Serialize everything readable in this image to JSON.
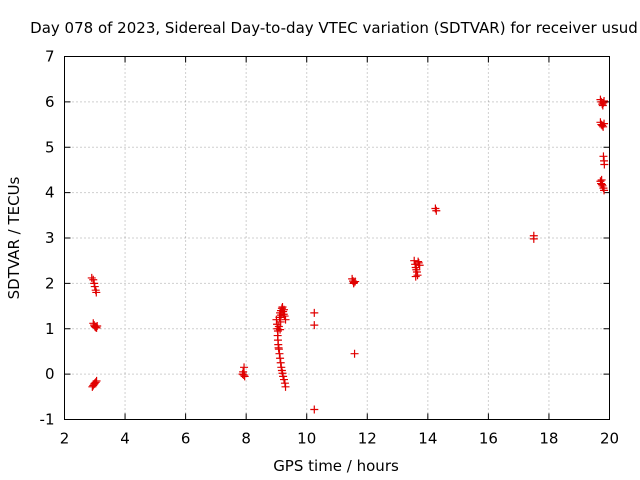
{
  "chart_data": {
    "type": "scatter",
    "title": "Day 078 of 2023, Sidereal Day-to-day VTEC variation (SDTVAR) for receiver usud",
    "xlabel": "GPS time / hours",
    "ylabel": "SDTVAR / TECUs",
    "xlim": [
      2,
      20
    ],
    "ylim": [
      -1,
      7
    ],
    "xticks": [
      2,
      4,
      6,
      8,
      10,
      12,
      14,
      16,
      18,
      20
    ],
    "yticks": [
      -1,
      0,
      1,
      2,
      3,
      4,
      5,
      6,
      7
    ],
    "xtick_labels": [
      "2",
      "4",
      "6",
      "8",
      "10",
      "12",
      "14",
      "16",
      "18",
      "20"
    ],
    "ytick_labels": [
      "-1",
      "0",
      "1",
      "2",
      "3",
      "4",
      "5",
      "6",
      "7"
    ],
    "grid": true,
    "marker": "plus",
    "color": "#e00000",
    "series": [
      {
        "name": "SDTVAR",
        "points": [
          [
            2.9,
            2.12
          ],
          [
            2.95,
            2.08
          ],
          [
            2.98,
            2.0
          ],
          [
            3.0,
            1.93
          ],
          [
            3.03,
            1.85
          ],
          [
            3.05,
            1.8
          ],
          [
            2.95,
            1.12
          ],
          [
            2.98,
            1.08
          ],
          [
            3.0,
            1.05
          ],
          [
            3.03,
            1.03
          ],
          [
            3.06,
            1.02
          ],
          [
            3.08,
            1.06
          ],
          [
            2.92,
            -0.28
          ],
          [
            2.95,
            -0.25
          ],
          [
            2.98,
            -0.22
          ],
          [
            3.0,
            -0.2
          ],
          [
            3.03,
            -0.18
          ],
          [
            3.06,
            -0.15
          ],
          [
            7.88,
            0.0
          ],
          [
            7.92,
            -0.02
          ],
          [
            7.95,
            -0.05
          ],
          [
            7.9,
            0.05
          ],
          [
            7.93,
            0.15
          ],
          [
            9.0,
            1.2
          ],
          [
            9.02,
            1.1
          ],
          [
            9.03,
            1.0
          ],
          [
            9.05,
            0.95
          ],
          [
            9.04,
            0.85
          ],
          [
            9.05,
            0.75
          ],
          [
            9.06,
            0.65
          ],
          [
            9.07,
            0.58
          ],
          [
            9.08,
            0.55
          ],
          [
            9.1,
            0.45
          ],
          [
            9.12,
            0.35
          ],
          [
            9.14,
            0.25
          ],
          [
            9.16,
            0.15
          ],
          [
            9.18,
            0.08
          ],
          [
            9.2,
            0.02
          ],
          [
            9.22,
            -0.05
          ],
          [
            9.25,
            -0.12
          ],
          [
            9.28,
            -0.2
          ],
          [
            9.3,
            -0.28
          ],
          [
            9.1,
            1.25
          ],
          [
            9.12,
            1.35
          ],
          [
            9.15,
            1.4
          ],
          [
            9.18,
            1.45
          ],
          [
            9.2,
            1.48
          ],
          [
            9.22,
            1.38
          ],
          [
            9.24,
            1.32
          ],
          [
            9.27,
            1.28
          ],
          [
            9.3,
            1.2
          ],
          [
            9.15,
            1.3
          ],
          [
            9.25,
            1.42
          ],
          [
            9.08,
            1.05
          ],
          [
            9.12,
            0.98
          ],
          [
            9.14,
            1.15
          ],
          [
            10.25,
            1.35
          ],
          [
            10.25,
            1.08
          ],
          [
            10.25,
            -0.78
          ],
          [
            11.5,
            2.1
          ],
          [
            11.53,
            2.05
          ],
          [
            11.56,
            2.02
          ],
          [
            11.6,
            2.04
          ],
          [
            11.55,
            2.0
          ],
          [
            11.58,
            0.45
          ],
          [
            13.55,
            2.5
          ],
          [
            13.58,
            2.42
          ],
          [
            13.6,
            2.35
          ],
          [
            13.62,
            2.3
          ],
          [
            13.64,
            2.25
          ],
          [
            13.66,
            2.18
          ],
          [
            13.7,
            2.45
          ],
          [
            13.73,
            2.4
          ],
          [
            13.68,
            2.48
          ],
          [
            13.6,
            2.15
          ],
          [
            14.25,
            3.65
          ],
          [
            14.28,
            3.6
          ],
          [
            17.5,
            3.05
          ],
          [
            17.5,
            2.98
          ],
          [
            19.7,
            6.05
          ],
          [
            19.73,
            6.0
          ],
          [
            19.76,
            5.95
          ],
          [
            19.78,
            5.92
          ],
          [
            19.8,
            5.98
          ],
          [
            19.82,
            6.02
          ],
          [
            19.7,
            5.55
          ],
          [
            19.73,
            5.5
          ],
          [
            19.76,
            5.48
          ],
          [
            19.79,
            5.45
          ],
          [
            19.82,
            5.52
          ],
          [
            19.8,
            4.8
          ],
          [
            19.82,
            4.7
          ],
          [
            19.83,
            4.62
          ],
          [
            19.7,
            4.25
          ],
          [
            19.72,
            4.2
          ],
          [
            19.75,
            4.18
          ],
          [
            19.77,
            4.15
          ],
          [
            19.8,
            4.1
          ],
          [
            19.82,
            4.05
          ],
          [
            19.74,
            4.28
          ]
        ]
      }
    ]
  }
}
